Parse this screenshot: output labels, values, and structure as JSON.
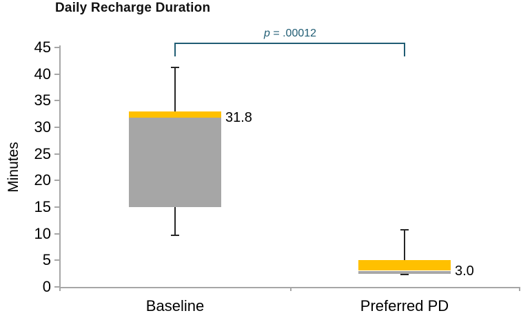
{
  "chart_data": {
    "type": "boxplot",
    "title": "Daily Recharge Duration",
    "ylabel": "Minutes",
    "ylim": [
      0,
      45
    ],
    "yticks": [
      0,
      5,
      10,
      15,
      20,
      25,
      30,
      35,
      40,
      45
    ],
    "grid": false,
    "legend": null,
    "categories": [
      "Baseline",
      "Preferred PD"
    ],
    "series": [
      {
        "name": "Baseline",
        "whisker_low": 9.7,
        "q1": 15.0,
        "median": 31.8,
        "q3": 33.0,
        "whisker_high": 41.3,
        "median_label": "31.8"
      },
      {
        "name": "Preferred PD",
        "whisker_low": 2.3,
        "q1": 2.5,
        "median": 3.0,
        "q3": 5.0,
        "whisker_high": 10.7,
        "median_label": "3.0"
      }
    ],
    "annotation": {
      "text": "p = .00012",
      "p_symbol": "p",
      "p_rest": " = .00012",
      "connects": [
        "Baseline",
        "Preferred PD"
      ]
    },
    "colors": {
      "box_upper_segment": "#FFC000",
      "box_lower_segment": "#A6A6A6",
      "whisker": "#262626",
      "axis": "#A6A6A6",
      "bracket": "#1F5C73",
      "text": "#000000"
    }
  }
}
